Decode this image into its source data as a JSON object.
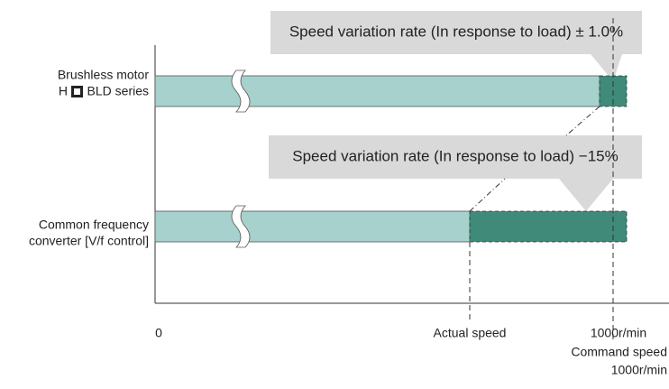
{
  "callouts": [
    "Speed variation rate (In response to load) ± 1.0%",
    "Speed variation rate (In response to load) −15%"
  ],
  "rows": [
    {
      "label": [
        "Brushless motor",
        "H",
        "BLD series"
      ]
    },
    {
      "label": [
        "Common frequency",
        "converter [V/f control]"
      ]
    }
  ],
  "axis": {
    "origin": "0",
    "actual": "Actual speed",
    "max": "1000r/min",
    "command": [
      "Command speed",
      "1000r/min"
    ]
  }
}
